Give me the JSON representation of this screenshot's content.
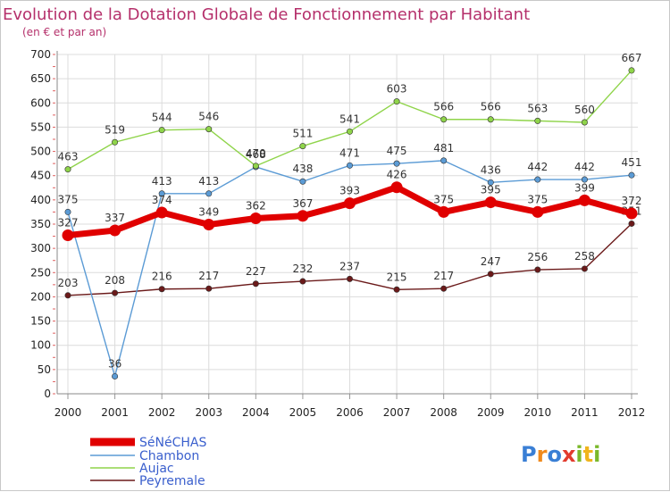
{
  "chart_data": {
    "type": "line",
    "title": "Evolution de la Dotation Globale de Fonctionnement par Habitant",
    "subtitle": "(en € et par an)",
    "categories": [
      "2000",
      "2001",
      "2002",
      "2003",
      "2004",
      "2005",
      "2006",
      "2007",
      "2008",
      "2009",
      "2010",
      "2011",
      "2012"
    ],
    "ylim": [
      0,
      700
    ],
    "yticks": [
      0,
      50,
      100,
      150,
      200,
      250,
      300,
      350,
      400,
      450,
      500,
      550,
      600,
      650,
      700
    ],
    "grid": true,
    "legend_position": "bottom-left",
    "series": [
      {
        "name": "Peyremale",
        "color": "#6b1a1a",
        "values": [
          203,
          208,
          216,
          217,
          227,
          232,
          237,
          215,
          217,
          247,
          256,
          258,
          351
        ]
      },
      {
        "name": "Chambon",
        "color": "#5b9bd5",
        "values": [
          375,
          36,
          413,
          413,
          468,
          438,
          471,
          475,
          481,
          436,
          442,
          442,
          451
        ]
      },
      {
        "name": "Aujac",
        "color": "#8fd44a",
        "values": [
          463,
          519,
          544,
          546,
          470,
          511,
          541,
          603,
          566,
          566,
          563,
          560,
          667
        ]
      },
      {
        "name": "SéNéCHAS",
        "color": "#e00000",
        "values": [
          327,
          337,
          374,
          349,
          362,
          367,
          393,
          426,
          375,
          395,
          375,
          399,
          372
        ]
      }
    ],
    "legend": [
      "SéNéCHAS",
      "Chambon",
      "Aujac",
      "Peyremale"
    ]
  },
  "brand": {
    "text": "Proxiti"
  }
}
